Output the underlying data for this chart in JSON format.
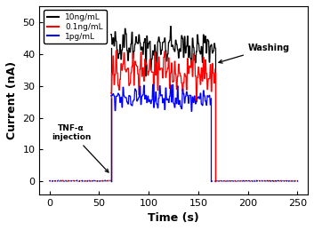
{
  "title": "",
  "xlabel": "Time (s)",
  "ylabel": "Current (nA)",
  "xlim": [
    -10,
    260
  ],
  "ylim": [
    -4,
    55
  ],
  "xticks": [
    0,
    50,
    100,
    150,
    200,
    250
  ],
  "yticks": [
    0,
    10,
    20,
    30,
    40,
    50
  ],
  "background_color": "#ffffff",
  "legend_labels": [
    "10ng/mL",
    "0.1ng/mL",
    "1pg/mL"
  ],
  "legend_colors": [
    "#000000",
    "#ff0000",
    "#0000ff"
  ],
  "annotation_injection": "TNF-α\ninjection",
  "annotation_washing": "Washing",
  "series": {
    "black": {
      "color": "#000000",
      "active_start": 62,
      "active_end": 167,
      "active_mean": 42,
      "active_noise": 3.0,
      "baseline_val": 0.2,
      "wash_val": 0.2,
      "seed": 10
    },
    "red": {
      "color": "#ff0000",
      "active_start": 62,
      "active_end": 167,
      "active_mean": 34,
      "active_noise": 3.5,
      "baseline_val": 0.15,
      "wash_val": 0.15,
      "seed": 20
    },
    "blue": {
      "color": "#0000ff",
      "active_start": 62,
      "active_end": 163,
      "active_mean": 26,
      "active_noise": 2.0,
      "baseline_val": 0.1,
      "wash_val": 0.1,
      "seed": 30
    }
  }
}
